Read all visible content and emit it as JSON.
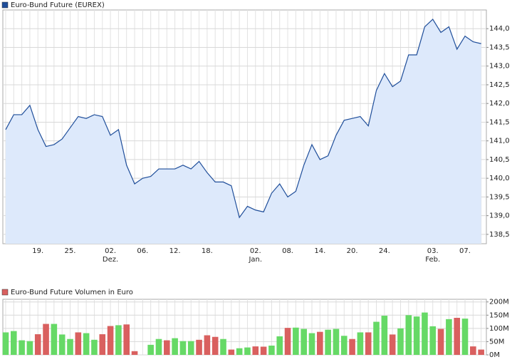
{
  "chart_data": [
    {
      "type": "line",
      "legend": "Euro-Bund Future (EUREX)",
      "color": "#1f4e9a",
      "fill": "#dde9fb",
      "categories": [
        null,
        null,
        null,
        null,
        "19.",
        null,
        null,
        null,
        "25.",
        null,
        null,
        null,
        null,
        "02.",
        null,
        null,
        null,
        "06.",
        null,
        null,
        null,
        "12.",
        null,
        null,
        null,
        "18.",
        null,
        null,
        null,
        null,
        null,
        "02.",
        null,
        null,
        null,
        "08.",
        null,
        null,
        null,
        "14.",
        null,
        null,
        null,
        "20.",
        null,
        null,
        null,
        "24.",
        null,
        null,
        null,
        null,
        null,
        "03.",
        null,
        null,
        null,
        "07.",
        null,
        null
      ],
      "month_labels": [
        null,
        null,
        null,
        null,
        null,
        null,
        null,
        null,
        null,
        null,
        null,
        null,
        null,
        "Dez.",
        null,
        null,
        null,
        null,
        null,
        null,
        null,
        null,
        null,
        null,
        null,
        null,
        null,
        null,
        null,
        null,
        null,
        "Jan.",
        null,
        null,
        null,
        null,
        null,
        null,
        null,
        null,
        null,
        null,
        null,
        null,
        null,
        null,
        null,
        null,
        null,
        null,
        null,
        null,
        null,
        "Feb.",
        null,
        null,
        null,
        null,
        null,
        null
      ],
      "values": [
        141.3,
        141.7,
        141.7,
        141.95,
        141.3,
        140.85,
        140.9,
        141.05,
        141.35,
        141.65,
        141.6,
        141.7,
        141.65,
        141.15,
        141.3,
        140.35,
        139.85,
        140.0,
        140.05,
        140.25,
        140.25,
        140.25,
        140.35,
        140.25,
        140.45,
        140.15,
        139.9,
        139.9,
        139.8,
        138.95,
        139.25,
        139.15,
        139.1,
        139.6,
        139.85,
        139.5,
        139.65,
        140.35,
        140.9,
        140.5,
        140.6,
        141.15,
        141.55,
        141.6,
        141.65,
        141.4,
        142.35,
        142.8,
        142.45,
        142.6,
        143.3,
        143.3,
        144.05,
        144.25,
        143.9,
        144.05,
        143.45,
        143.8,
        143.65,
        143.6
      ],
      "ylim": [
        138.25,
        144.5
      ],
      "yticks": [
        {
          "value": 138.5,
          "label": "138,5"
        },
        {
          "value": 139,
          "label": "139,0"
        },
        {
          "value": 139.5,
          "label": "139,5"
        },
        {
          "value": 140,
          "label": "140,0"
        },
        {
          "value": 140.5,
          "label": "140,5"
        },
        {
          "value": 141,
          "label": "141,0"
        },
        {
          "value": 141.5,
          "label": "141,5"
        },
        {
          "value": 142,
          "label": "142,0"
        },
        {
          "value": 142.5,
          "label": "142,5"
        },
        {
          "value": 143,
          "label": "143,0"
        },
        {
          "value": 143.5,
          "label": "143,5"
        },
        {
          "value": 144,
          "label": "144,0"
        }
      ],
      "grid": true
    },
    {
      "type": "bar",
      "legend": "Euro-Bund Future Volumen in Euro",
      "color": "#d9605f",
      "values": [
        85,
        90,
        55,
        52,
        78,
        117,
        117,
        77,
        60,
        85,
        82,
        57,
        78,
        109,
        112,
        115,
        14,
        null,
        38,
        60,
        55,
        63,
        52,
        52,
        57,
        74,
        68,
        60,
        20,
        25,
        28,
        32,
        31,
        35,
        70,
        102,
        103,
        98,
        82,
        87,
        95,
        98,
        72,
        60,
        85,
        85,
        125,
        148,
        77,
        100,
        150,
        145,
        160,
        108,
        98,
        135,
        140,
        137,
        32,
        20
      ],
      "bar_colors": [
        "#66d966",
        "#66d966",
        "#66d966",
        "#66d966",
        "#d9605f",
        "#d9605f",
        "#66d966",
        "#66d966",
        "#66d966",
        "#d9605f",
        "#66d966",
        "#66d966",
        "#d9605f",
        "#d9605f",
        "#66d966",
        "#d9605f",
        "#d9605f",
        null,
        "#66d966",
        "#66d966",
        "#d9605f",
        "#66d966",
        "#66d966",
        "#66d966",
        "#d9605f",
        "#d9605f",
        "#d9605f",
        "#66d966",
        "#d9605f",
        "#66d966",
        "#66d966",
        "#d9605f",
        "#d9605f",
        "#66d966",
        "#66d966",
        "#d9605f",
        "#66d966",
        "#66d966",
        "#66d966",
        "#d9605f",
        "#66d966",
        "#66d966",
        "#66d966",
        "#d9605f",
        "#66d966",
        "#d9605f",
        "#66d966",
        "#66d966",
        "#d9605f",
        "#66d966",
        "#66d966",
        "#66d966",
        "#66d966",
        "#66d966",
        "#d9605f",
        "#66d966",
        "#d9605f",
        "#66d966",
        "#d9605f",
        "#d9605f"
      ],
      "ylim": [
        0,
        210
      ],
      "yticks": [
        {
          "value": 0,
          "label": "0M"
        },
        {
          "value": 50,
          "label": "50M"
        },
        {
          "value": 100,
          "label": "100M"
        },
        {
          "value": 150,
          "label": "150M"
        },
        {
          "value": 200,
          "label": "200M"
        }
      ],
      "grid": true
    }
  ]
}
